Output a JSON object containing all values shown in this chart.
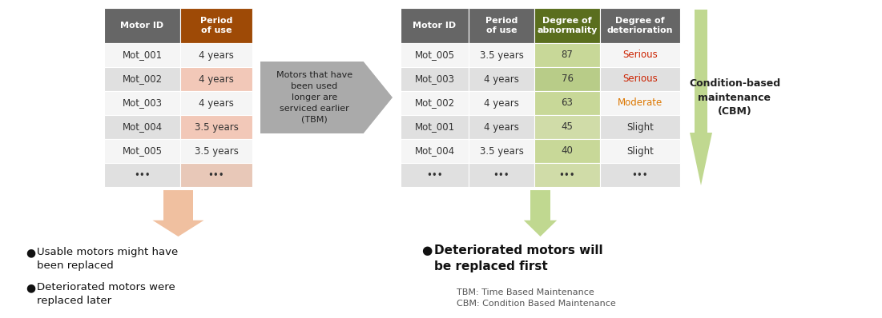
{
  "tbm_table": {
    "headers": [
      "Motor ID",
      "Period\nof use"
    ],
    "header_colors": [
      "#666666",
      "#9E4A06"
    ],
    "rows": [
      [
        "Mot_001",
        "4 years"
      ],
      [
        "Mot_002",
        "4 years"
      ],
      [
        "Mot_003",
        "4 years"
      ],
      [
        "Mot_004",
        "3.5 years"
      ],
      [
        "Mot_005",
        "3.5 years"
      ],
      [
        "•••",
        "•••"
      ]
    ],
    "row_bg_colors": [
      [
        "#f5f5f5",
        "#f5f5f5"
      ],
      [
        "#e0e0e0",
        "#f2c8b8"
      ],
      [
        "#f5f5f5",
        "#f5f5f5"
      ],
      [
        "#e0e0e0",
        "#f2c8b8"
      ],
      [
        "#f5f5f5",
        "#f5f5f5"
      ],
      [
        "#e0e0e0",
        "#e8c8b8"
      ]
    ]
  },
  "cbm_table": {
    "headers": [
      "Motor ID",
      "Period\nof use",
      "Degree of\nabnormality",
      "Degree of\ndeterioration"
    ],
    "header_colors": [
      "#666666",
      "#666666",
      "#5a6e1e",
      "#666666"
    ],
    "rows": [
      [
        "Mot_005",
        "3.5 years",
        "87",
        "Serious"
      ],
      [
        "Mot_003",
        "4 years",
        "76",
        "Serious"
      ],
      [
        "Mot_002",
        "4 years",
        "63",
        "Moderate"
      ],
      [
        "Mot_001",
        "4 years",
        "45",
        "Slight"
      ],
      [
        "Mot_004",
        "3.5 years",
        "40",
        "Slight"
      ],
      [
        "•••",
        "•••",
        "•••",
        "•••"
      ]
    ],
    "row_bg_colors": [
      [
        "#f5f5f5",
        "#f5f5f5",
        "#c8d898",
        "#f5f5f5"
      ],
      [
        "#e0e0e0",
        "#e0e0e0",
        "#b8cc88",
        "#e0e0e0"
      ],
      [
        "#f5f5f5",
        "#f5f5f5",
        "#c8d898",
        "#f5f5f5"
      ],
      [
        "#e0e0e0",
        "#e0e0e0",
        "#d0dca8",
        "#e0e0e0"
      ],
      [
        "#f5f5f5",
        "#f5f5f5",
        "#c8d898",
        "#f5f5f5"
      ],
      [
        "#e0e0e0",
        "#e0e0e0",
        "#d0dca8",
        "#e0e0e0"
      ]
    ],
    "deterioration_colors": [
      "#cc2200",
      "#cc2200",
      "#dd7700",
      "#333333",
      "#333333",
      "#333333"
    ]
  },
  "tbm_arrow_color": "#f0c0a0",
  "cbm_arrow_color": "#c0d890",
  "middle_arrow_color": "#aaaaaa",
  "tbm_label": "Motors that have\nbeen used\nlonger are\nserviced earlier\n(TBM)",
  "cbm_right_label": "Condition-based\nmaintenance\n(CBM)",
  "tbm_bullets": [
    "Usable motors might have\nbeen replaced",
    "Deteriorated motors were\nreplaced later"
  ],
  "cbm_bullets": [
    "Deteriorated motors will\nbe replaced first"
  ],
  "footnote": "TBM: Time Based Maintenance\nCBM: Condition Based Maintenance",
  "bg_color": "#ffffff"
}
